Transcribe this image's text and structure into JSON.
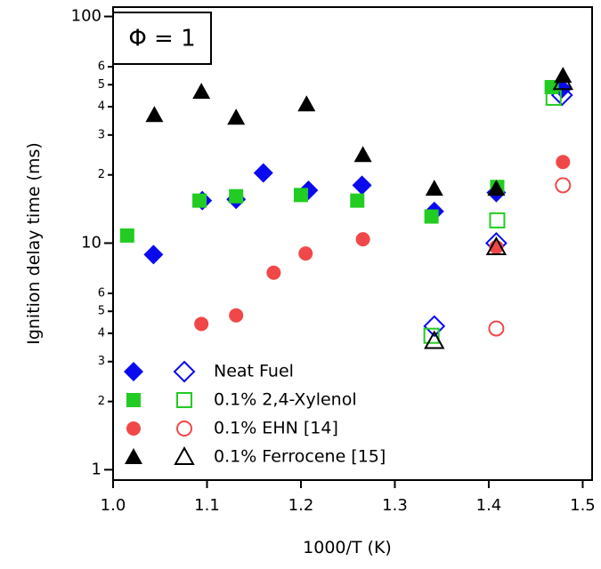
{
  "chart_data": {
    "type": "scatter",
    "title": "Φ = 1",
    "x_label": "1000/T (K)",
    "y_label": "Ignition delay time (ms)",
    "xlim": [
      1.0,
      1.51
    ],
    "xticks": [
      {
        "value": 1,
        "label": "1.0"
      },
      1.1,
      1.2,
      1.3,
      1.4,
      1.5
    ],
    "ylim": [
      0.9,
      110
    ],
    "log_y": true,
    "yticks": [
      1,
      2,
      3,
      4,
      5,
      6,
      10,
      {
        "value": 20,
        "label": "2"
      },
      {
        "value": 30,
        "label": "3"
      },
      {
        "value": 40,
        "label": "4"
      },
      {
        "value": 50,
        "label": "5"
      },
      {
        "value": 60,
        "label": "6"
      },
      100
    ],
    "legend": "lower left",
    "series": [
      {
        "name": "Neat Fuel",
        "color": "#0a0aee",
        "marker": "diamond",
        "filled": {
          "x": [
            1.043,
            1.095,
            1.131,
            1.16,
            1.208,
            1.265,
            1.342,
            1.408,
            1.478
          ],
          "values": [
            8.9,
            15.4,
            15.6,
            20.4,
            17.1,
            18.0,
            13.8,
            16.7,
            48
          ]
        },
        "open": {
          "x": [
            1.342,
            1.408,
            1.478
          ],
          "values": [
            4.3,
            10,
            45
          ]
        }
      },
      {
        "name": "0.1% 2,4-Xylenol",
        "color": "#22cc22",
        "marker": "square",
        "filled": {
          "x": [
            1.015,
            1.092,
            1.131,
            1.2,
            1.26,
            1.339,
            1.409,
            1.467
          ],
          "values": [
            10.8,
            15.4,
            16.1,
            16.3,
            15.4,
            13.1,
            17.7,
            48.8
          ]
        },
        "open": {
          "x": [
            1.339,
            1.409,
            1.469
          ],
          "values": [
            3.9,
            12.6,
            43.8
          ]
        }
      },
      {
        "name": "0.1% EHN [14]",
        "color": "#f04848",
        "marker": "circle",
        "filled": {
          "x": [
            1.094,
            1.131,
            1.171,
            1.205,
            1.266,
            1.408,
            1.479
          ],
          "values": [
            4.4,
            4.8,
            7.4,
            9.0,
            10.4,
            9.6,
            22.8
          ]
        },
        "open": {
          "x": [
            1.408,
            1.479
          ],
          "values": [
            4.2,
            18.0
          ]
        }
      },
      {
        "name": "0.1% Ferrocene [15]",
        "color": "#000000",
        "marker": "triangle",
        "filled": {
          "x": [
            1.044,
            1.094,
            1.131,
            1.206,
            1.266,
            1.342,
            1.408,
            1.479
          ],
          "values": [
            36.8,
            46.6,
            35.8,
            41.0,
            24.5,
            17.4,
            17.4,
            54.8
          ]
        },
        "open": {
          "x": [
            1.342,
            1.408,
            1.479
          ],
          "values": [
            3.7,
            9.6,
            51.4
          ]
        }
      }
    ]
  }
}
